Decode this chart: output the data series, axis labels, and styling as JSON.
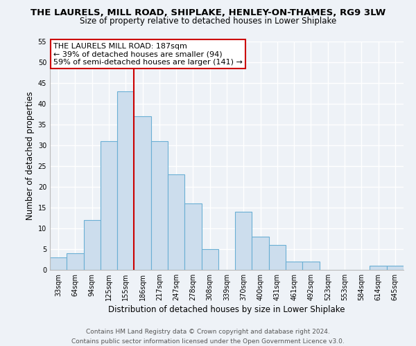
{
  "title": "THE LAURELS, MILL ROAD, SHIPLAKE, HENLEY-ON-THAMES, RG9 3LW",
  "subtitle": "Size of property relative to detached houses in Lower Shiplake",
  "xlabel": "Distribution of detached houses by size in Lower Shiplake",
  "ylabel": "Number of detached properties",
  "bar_labels": [
    "33sqm",
    "64sqm",
    "94sqm",
    "125sqm",
    "155sqm",
    "186sqm",
    "217sqm",
    "247sqm",
    "278sqm",
    "308sqm",
    "339sqm",
    "370sqm",
    "400sqm",
    "431sqm",
    "461sqm",
    "492sqm",
    "523sqm",
    "553sqm",
    "584sqm",
    "614sqm",
    "645sqm"
  ],
  "bar_values": [
    3,
    4,
    12,
    31,
    43,
    37,
    31,
    23,
    16,
    5,
    0,
    14,
    8,
    6,
    2,
    2,
    0,
    0,
    0,
    1,
    1
  ],
  "bar_color": "#ccdded",
  "bar_edge_color": "#6aafd4",
  "vline_x": 4.5,
  "vline_color": "#cc0000",
  "ylim": [
    0,
    55
  ],
  "yticks": [
    0,
    5,
    10,
    15,
    20,
    25,
    30,
    35,
    40,
    45,
    50,
    55
  ],
  "annotation_title": "THE LAURELS MILL ROAD: 187sqm",
  "annotation_line1": "← 39% of detached houses are smaller (94)",
  "annotation_line2": "59% of semi-detached houses are larger (141) →",
  "annotation_box_color": "#ffffff",
  "annotation_box_edge": "#cc0000",
  "footer_line1": "Contains HM Land Registry data © Crown copyright and database right 2024.",
  "footer_line2": "Contains public sector information licensed under the Open Government Licence v3.0.",
  "background_color": "#eef2f7",
  "title_fontsize": 9.5,
  "subtitle_fontsize": 8.5,
  "axis_label_fontsize": 8.5,
  "tick_fontsize": 7,
  "footer_fontsize": 6.5,
  "annotation_fontsize": 8
}
